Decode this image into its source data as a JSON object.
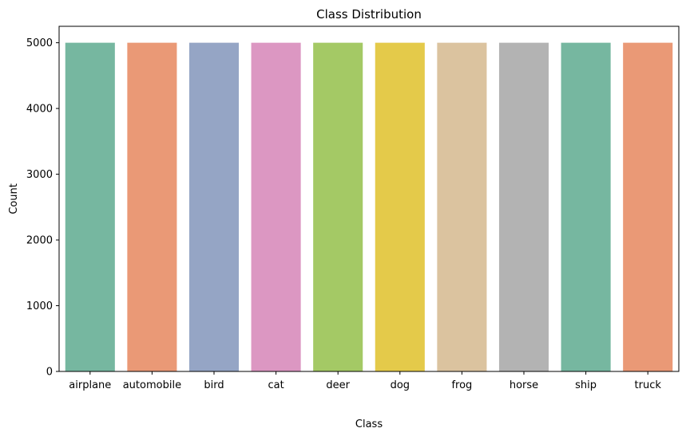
{
  "chart_data": {
    "type": "bar",
    "title": "Class Distribution",
    "xlabel": "Class",
    "ylabel": "Count",
    "categories": [
      "airplane",
      "automobile",
      "bird",
      "cat",
      "deer",
      "dog",
      "frog",
      "horse",
      "ship",
      "truck"
    ],
    "values": [
      5000,
      5000,
      5000,
      5000,
      5000,
      5000,
      5000,
      5000,
      5000,
      5000
    ],
    "colors": [
      "#76b7a0",
      "#ea9976",
      "#95a5c5",
      "#dc97c2",
      "#a4c965",
      "#e4ca4a",
      "#dbc39f",
      "#b3b3b3",
      "#76b7a0",
      "#ea9976"
    ],
    "ylim": [
      0,
      5250
    ],
    "yticks": [
      0,
      1000,
      2000,
      3000,
      4000,
      5000
    ],
    "ytick_labels": [
      "0",
      "1000",
      "2000",
      "3000",
      "4000",
      "5000"
    ],
    "grid": false,
    "legend": "none"
  }
}
